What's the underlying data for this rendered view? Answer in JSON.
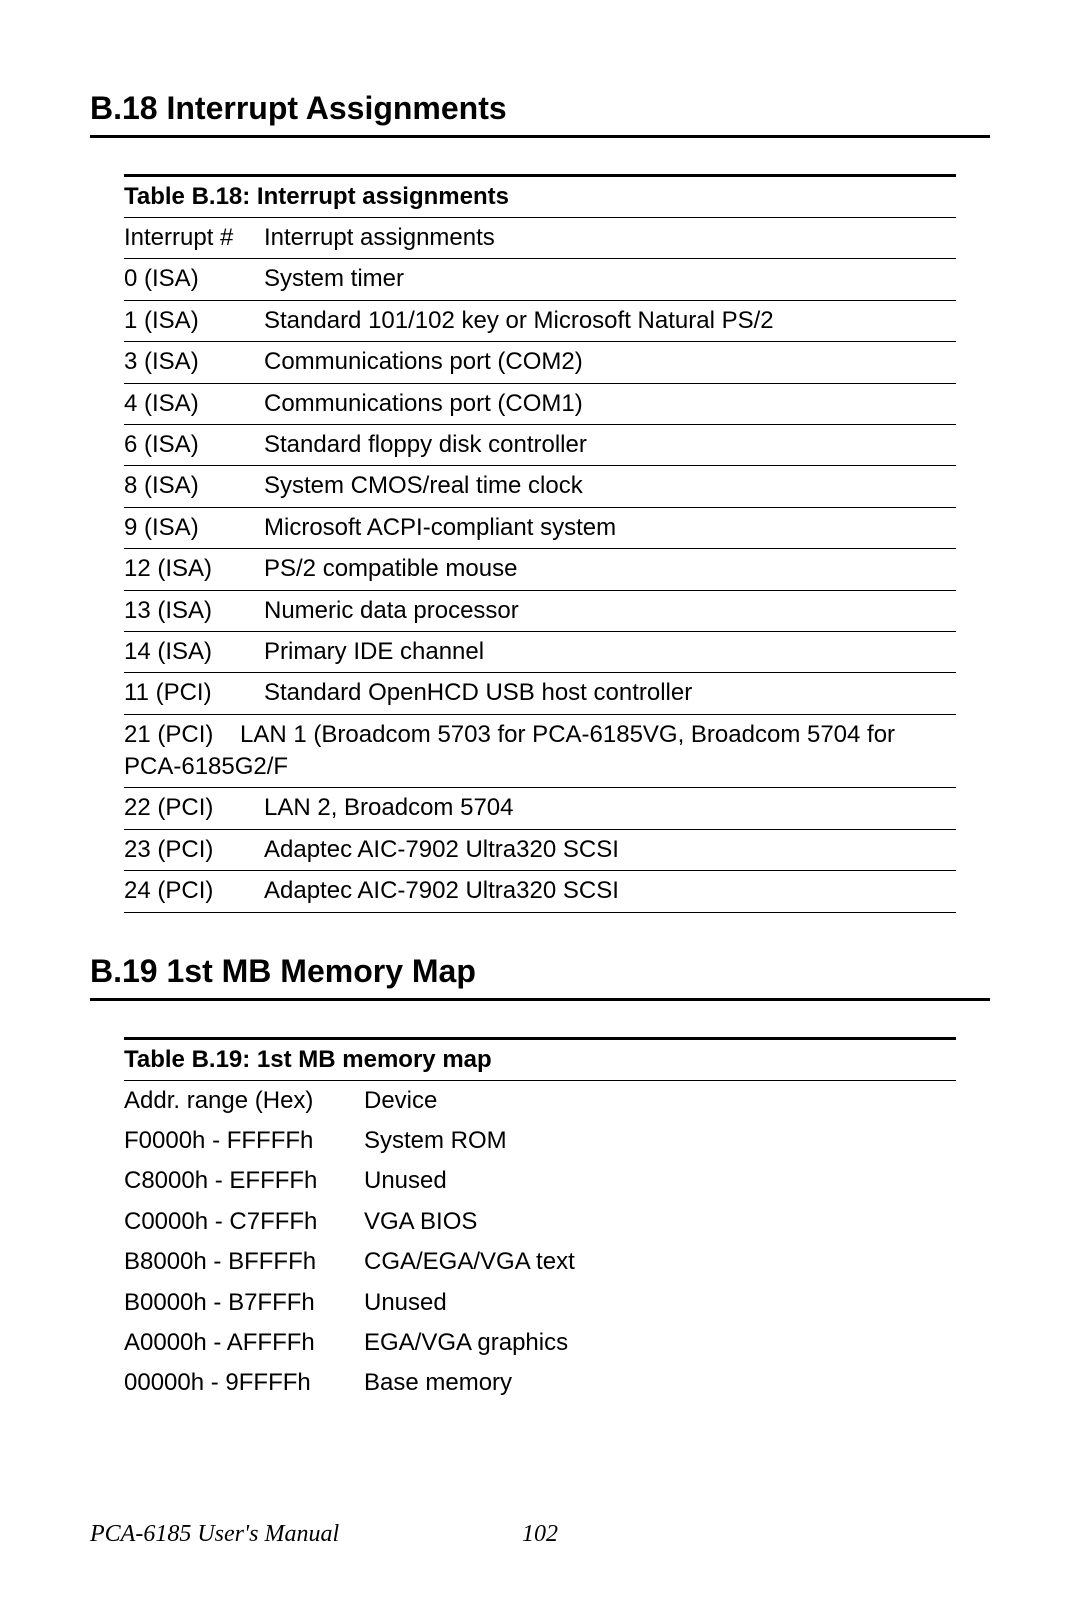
{
  "body_font": "Arial, Helvetica, sans-serif",
  "footer_font": "Times New Roman, serif",
  "text_color": "#000000",
  "bg_color": "#ffffff",
  "rule_color": "#000000",
  "heading_fontsize_pt": 24,
  "body_fontsize_pt": 18,
  "heading_weight": "bold",
  "section1": {
    "heading": "B.18  Interrupt Assignments",
    "table_title": "Table B.18: Interrupt assignments",
    "col_headers": [
      "Interrupt #",
      "Interrupt assignments"
    ],
    "rows": [
      [
        "0 (ISA)",
        "System timer"
      ],
      [
        "1 (ISA)",
        "Standard 101/102 key or Microsoft Natural PS/2"
      ],
      [
        "3 (ISA)",
        "Communications port (COM2)"
      ],
      [
        "4 (ISA)",
        "Communications port (COM1)"
      ],
      [
        "6 (ISA)",
        "Standard floppy disk controller"
      ],
      [
        "8 (ISA)",
        "System CMOS/real time clock"
      ],
      [
        "9 (ISA)",
        "Microsoft ACPI-compliant system"
      ],
      [
        "12 (ISA)",
        "PS/2 compatible mouse"
      ],
      [
        "13 (ISA)",
        "Numeric data processor"
      ],
      [
        "14 (ISA)",
        "Primary IDE channel"
      ],
      [
        "11 (PCI)",
        "Standard OpenHCD USB host controller"
      ],
      [
        "21 (PCI)",
        "LAN 1 (Broadcom 5703 for PCA-6185VG, Broadcom 5704 for PCA-6185G2/F"
      ],
      [
        "22 (PCI)",
        "LAN 2, Broadcom 5704"
      ],
      [
        "23 (PCI)",
        "Adaptec AIC-7902 Ultra320 SCSI"
      ],
      [
        "24 (PCI)",
        "Adaptec AIC-7902 Ultra320 SCSI"
      ]
    ]
  },
  "section2": {
    "heading": "B.19  1st MB Memory Map",
    "table_title": "Table B.19: 1st MB memory map",
    "col_headers": [
      "Addr. range (Hex)",
      "Device"
    ],
    "rows": [
      [
        "F0000h - FFFFFh",
        "System ROM"
      ],
      [
        "C8000h - EFFFFh",
        "Unused"
      ],
      [
        "C0000h - C7FFFh",
        "VGA BIOS"
      ],
      [
        "B8000h - BFFFFh",
        "CGA/EGA/VGA text"
      ],
      [
        "B0000h - B7FFFh",
        "Unused"
      ],
      [
        "A0000h - AFFFFh",
        "EGA/VGA graphics"
      ],
      [
        "00000h - 9FFFFh",
        "Base memory"
      ]
    ]
  },
  "footer": {
    "manual": "PCA-6185 User's Manual",
    "page": "102"
  }
}
